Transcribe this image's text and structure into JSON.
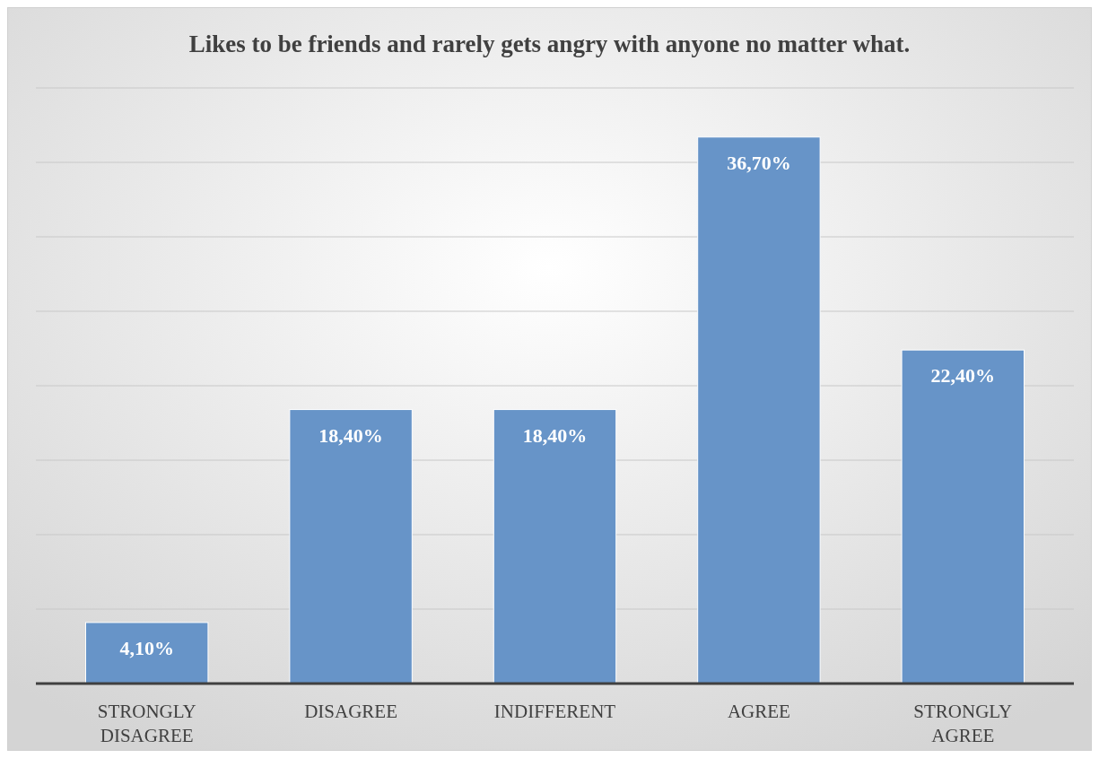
{
  "chart_data": {
    "type": "bar",
    "title": "Likes to be friends and rarely gets angry with anyone no matter what.",
    "categories": [
      "STRONGLY DISAGREE",
      "DISAGREE",
      "INDIFFERENT",
      "AGREE",
      "STRONGLY AGREE"
    ],
    "values": [
      4.1,
      18.4,
      18.4,
      36.7,
      22.4
    ],
    "value_labels": [
      "4,10%",
      "18,40%",
      "18,40%",
      "36,70%",
      "22,40%"
    ],
    "color": "#6794c8",
    "ylim": [
      0,
      40
    ],
    "yticks": [
      {
        "value": 0,
        "label": null
      },
      {
        "value": 5,
        "label": null
      },
      {
        "value": 10,
        "label": null
      },
      {
        "value": 15,
        "label": null
      },
      {
        "value": 20,
        "label": null
      },
      {
        "value": 25,
        "label": null
      },
      {
        "value": 30,
        "label": null
      },
      {
        "value": 35,
        "label": null
      },
      {
        "value": 40,
        "label": null
      }
    ],
    "grid": "y",
    "tick_labels": "x"
  }
}
